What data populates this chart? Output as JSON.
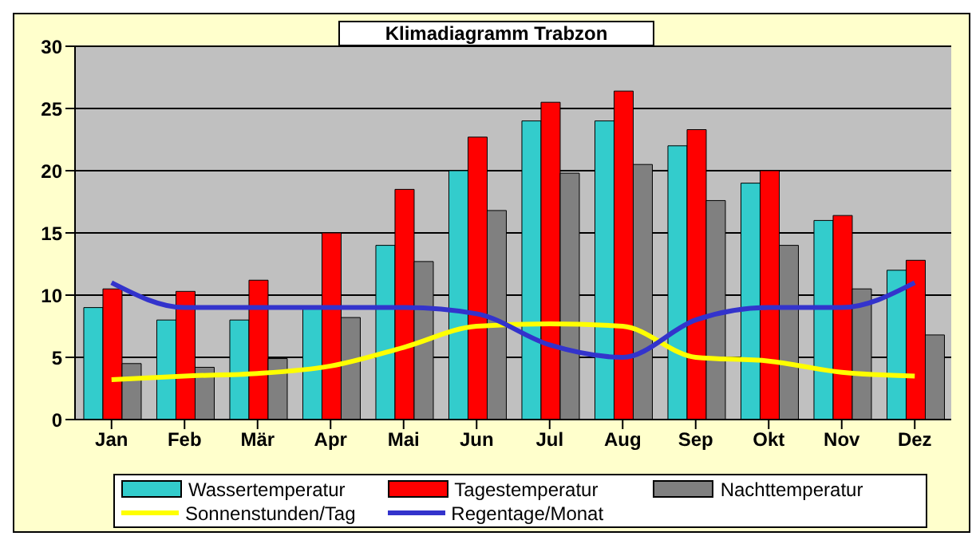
{
  "chart_data": {
    "type": "bar",
    "title": "Klimadiagramm Trabzon",
    "categories": [
      "Jan",
      "Feb",
      "Mär",
      "Apr",
      "Mai",
      "Jun",
      "Jul",
      "Aug",
      "Sep",
      "Okt",
      "Nov",
      "Dez"
    ],
    "series": [
      {
        "name": "Wassertemperatur",
        "color": "#33cccc",
        "values": [
          9,
          8,
          8,
          9,
          14,
          20,
          24,
          24,
          22,
          19,
          16,
          12
        ]
      },
      {
        "name": "Tagestemperatur",
        "color": "#ff0000",
        "values": [
          10.5,
          10.3,
          11.2,
          15,
          18.5,
          22.7,
          25.5,
          26.4,
          23.3,
          20,
          16.4,
          12.8
        ]
      },
      {
        "name": "Nachttemperatur",
        "color": "#808080",
        "values": [
          4.5,
          4.2,
          4.9,
          8.2,
          12.7,
          16.8,
          19.8,
          20.5,
          17.6,
          14,
          10.5,
          6.8
        ]
      },
      {
        "name": "Sonnenstunden/Tag",
        "type": "line",
        "color": "#ffff00",
        "values": [
          3.2,
          3.5,
          3.7,
          4.3,
          5.8,
          7.5,
          7.7,
          7.5,
          5,
          4.7,
          3.8,
          3.5
        ]
      },
      {
        "name": "Regentage/Monat",
        "type": "line",
        "color": "#3333cc",
        "values": [
          11,
          9,
          9,
          9,
          9,
          8.5,
          6,
          5,
          8,
          9,
          9,
          11
        ]
      }
    ],
    "ylim": [
      0,
      30
    ],
    "yticks": [
      0,
      5,
      10,
      15,
      20,
      25,
      30
    ],
    "grid": "y",
    "legend": "bottom",
    "marker": "none"
  }
}
